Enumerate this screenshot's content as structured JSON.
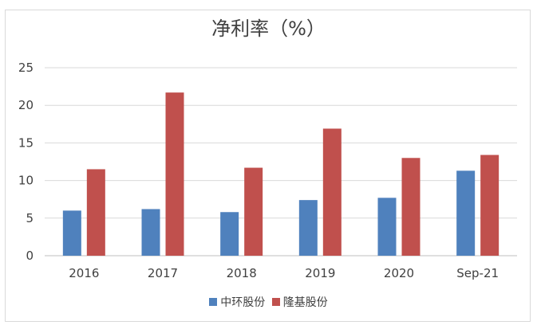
{
  "chart_data": {
    "type": "bar",
    "title": "净利率（%）",
    "categories": [
      "2016",
      "2017",
      "2018",
      "2019",
      "2020",
      "Sep-21"
    ],
    "series": [
      {
        "name": "中环股份",
        "color": "#4F81BD",
        "values": [
          6.0,
          6.2,
          5.8,
          7.4,
          7.7,
          11.3
        ]
      },
      {
        "name": "隆基股份",
        "color": "#C0504D",
        "values": [
          11.5,
          21.7,
          11.7,
          16.9,
          13.0,
          13.4
        ]
      }
    ],
    "ylim": [
      0,
      25
    ],
    "yticks": [
      0,
      5,
      10,
      15,
      20,
      25
    ],
    "grid": true,
    "legend_position": "bottom"
  }
}
